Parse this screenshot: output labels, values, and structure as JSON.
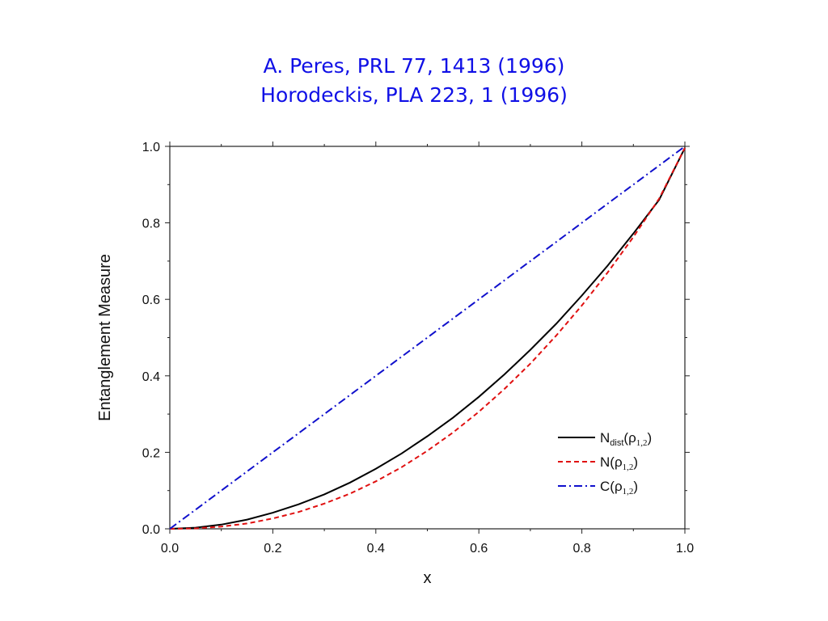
{
  "header": {
    "line1": "A. Peres, PRL 77, 1413 (1996)",
    "line2": "Horodeckis, PLA 223, 1 (1996)"
  },
  "chart_data": {
    "type": "line",
    "xlabel": "x",
    "ylabel": "Entanglement Measure",
    "xlim": [
      0.0,
      1.0
    ],
    "ylim": [
      0.0,
      1.0
    ],
    "xticks": [
      "0.0",
      "0.2",
      "0.4",
      "0.6",
      "0.8",
      "1.0"
    ],
    "yticks": [
      "0.0",
      "0.2",
      "0.4",
      "0.6",
      "0.8",
      "1.0"
    ],
    "grid": false,
    "legend_position": "bottom-right",
    "x": [
      0.0,
      0.05,
      0.1,
      0.15,
      0.2,
      0.25,
      0.3,
      0.35,
      0.4,
      0.45,
      0.5,
      0.55,
      0.6,
      0.65,
      0.7,
      0.75,
      0.8,
      0.85,
      0.9,
      0.95,
      1.0
    ],
    "series": [
      {
        "name": "Ndist(ρ1,2)",
        "label_main": "N",
        "label_sub": "dist",
        "label_arg": "ρ",
        "label_argsub": "1,2",
        "color": "#000000",
        "dash": "solid",
        "values": [
          0.0,
          0.003,
          0.011,
          0.024,
          0.042,
          0.064,
          0.09,
          0.121,
          0.157,
          0.197,
          0.242,
          0.291,
          0.345,
          0.404,
          0.468,
          0.536,
          0.61,
          0.688,
          0.772,
          0.86,
          0.996
        ]
      },
      {
        "name": "N(ρ1,2)",
        "label_main": "N",
        "label_sub": "",
        "label_arg": "ρ",
        "label_argsub": "1,2",
        "color": "#e01010",
        "dash": "dashed",
        "values": [
          0.0,
          0.001,
          0.006,
          0.014,
          0.027,
          0.044,
          0.066,
          0.092,
          0.124,
          0.161,
          0.204,
          0.252,
          0.306,
          0.366,
          0.432,
          0.505,
          0.584,
          0.67,
          0.763,
          0.863,
          0.996
        ]
      },
      {
        "name": "C(ρ1,2)",
        "label_main": "C",
        "label_sub": "",
        "label_arg": "ρ",
        "label_argsub": "1,2",
        "color": "#1010cc",
        "dash": "dashdot",
        "values": [
          0.0,
          0.05,
          0.1,
          0.15,
          0.2,
          0.25,
          0.3,
          0.35,
          0.4,
          0.45,
          0.5,
          0.55,
          0.6,
          0.65,
          0.7,
          0.75,
          0.8,
          0.85,
          0.9,
          0.95,
          1.0
        ]
      }
    ]
  }
}
